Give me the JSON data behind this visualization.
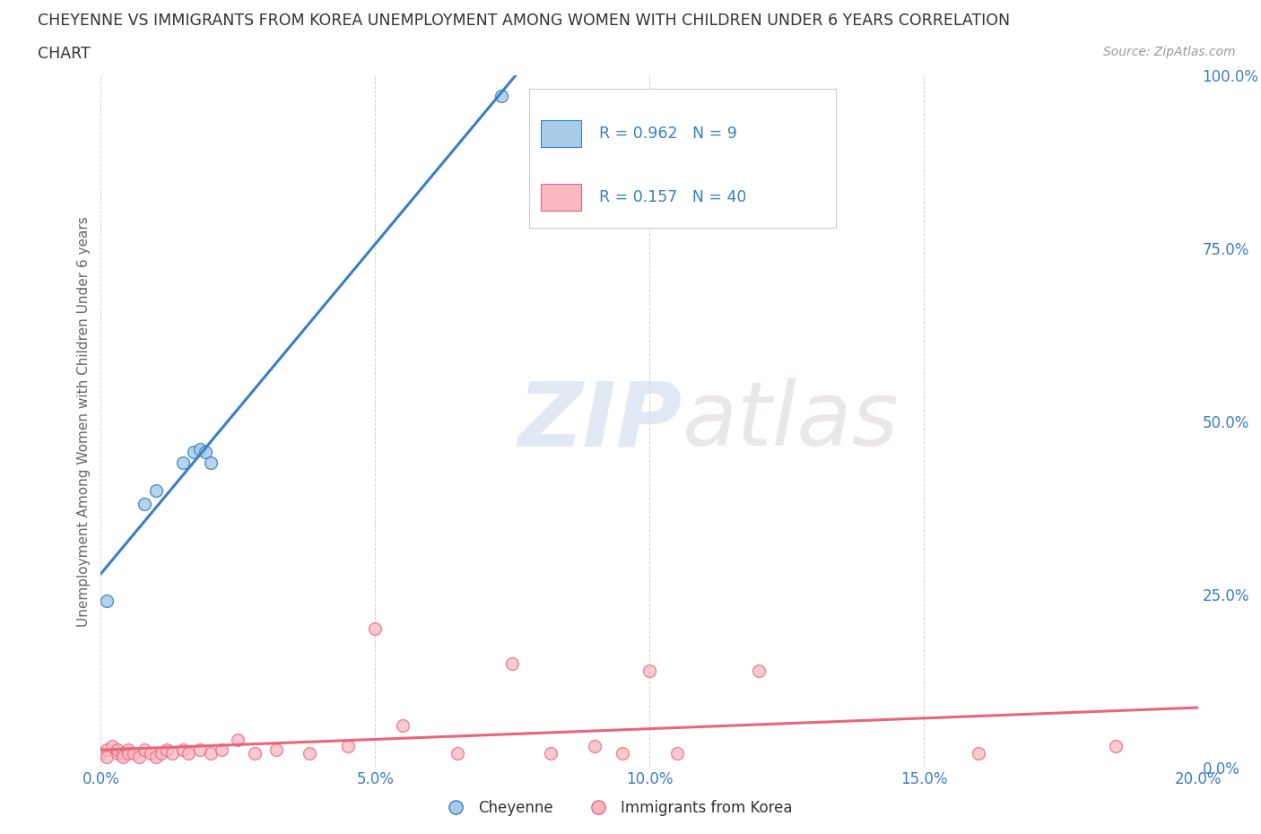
{
  "title_line1": "CHEYENNE VS IMMIGRANTS FROM KOREA UNEMPLOYMENT AMONG WOMEN WITH CHILDREN UNDER 6 YEARS CORRELATION",
  "title_line2": "CHART",
  "source": "Source: ZipAtlas.com",
  "ylabel": "Unemployment Among Women with Children Under 6 years",
  "xlim": [
    0.0,
    0.2
  ],
  "ylim": [
    0.0,
    1.0
  ],
  "xticks": [
    0.0,
    0.05,
    0.1,
    0.15,
    0.2
  ],
  "xtick_labels": [
    "0.0%",
    "5.0%",
    "10.0%",
    "15.0%",
    "20.0%"
  ],
  "yticks": [
    0.0,
    0.25,
    0.5,
    0.75,
    1.0
  ],
  "ytick_labels": [
    "0.0%",
    "25.0%",
    "50.0%",
    "75.0%",
    "100.0%"
  ],
  "cheyenne_color": "#a8cce8",
  "korea_color": "#f7b8c2",
  "cheyenne_line_color": "#3a7fc1",
  "korea_line_color": "#e8657a",
  "cheyenne_R": 0.962,
  "cheyenne_N": 9,
  "korea_R": 0.157,
  "korea_N": 40,
  "legend_label_cheyenne": "Cheyenne",
  "legend_label_korea": "Immigrants from Korea",
  "background_color": "#ffffff",
  "watermark_zip": "ZIP",
  "watermark_atlas": "atlas",
  "grid_color": "#cccccc",
  "cheyenne_x": [
    0.001,
    0.008,
    0.01,
    0.015,
    0.017,
    0.018,
    0.019,
    0.02,
    0.073
  ],
  "cheyenne_y": [
    0.24,
    0.38,
    0.4,
    0.44,
    0.455,
    0.46,
    0.455,
    0.44,
    0.97
  ],
  "korea_x": [
    0.0,
    0.001,
    0.001,
    0.002,
    0.003,
    0.003,
    0.004,
    0.004,
    0.005,
    0.005,
    0.006,
    0.007,
    0.008,
    0.009,
    0.01,
    0.011,
    0.012,
    0.013,
    0.015,
    0.016,
    0.018,
    0.02,
    0.022,
    0.025,
    0.028,
    0.032,
    0.038,
    0.045,
    0.05,
    0.055,
    0.065,
    0.075,
    0.082,
    0.09,
    0.095,
    0.1,
    0.105,
    0.12,
    0.16,
    0.185
  ],
  "korea_y": [
    0.02,
    0.025,
    0.015,
    0.03,
    0.02,
    0.025,
    0.02,
    0.015,
    0.025,
    0.02,
    0.02,
    0.015,
    0.025,
    0.02,
    0.015,
    0.02,
    0.025,
    0.02,
    0.025,
    0.02,
    0.025,
    0.02,
    0.025,
    0.04,
    0.02,
    0.025,
    0.02,
    0.03,
    0.2,
    0.06,
    0.02,
    0.15,
    0.02,
    0.03,
    0.02,
    0.14,
    0.02,
    0.14,
    0.02,
    0.03
  ]
}
